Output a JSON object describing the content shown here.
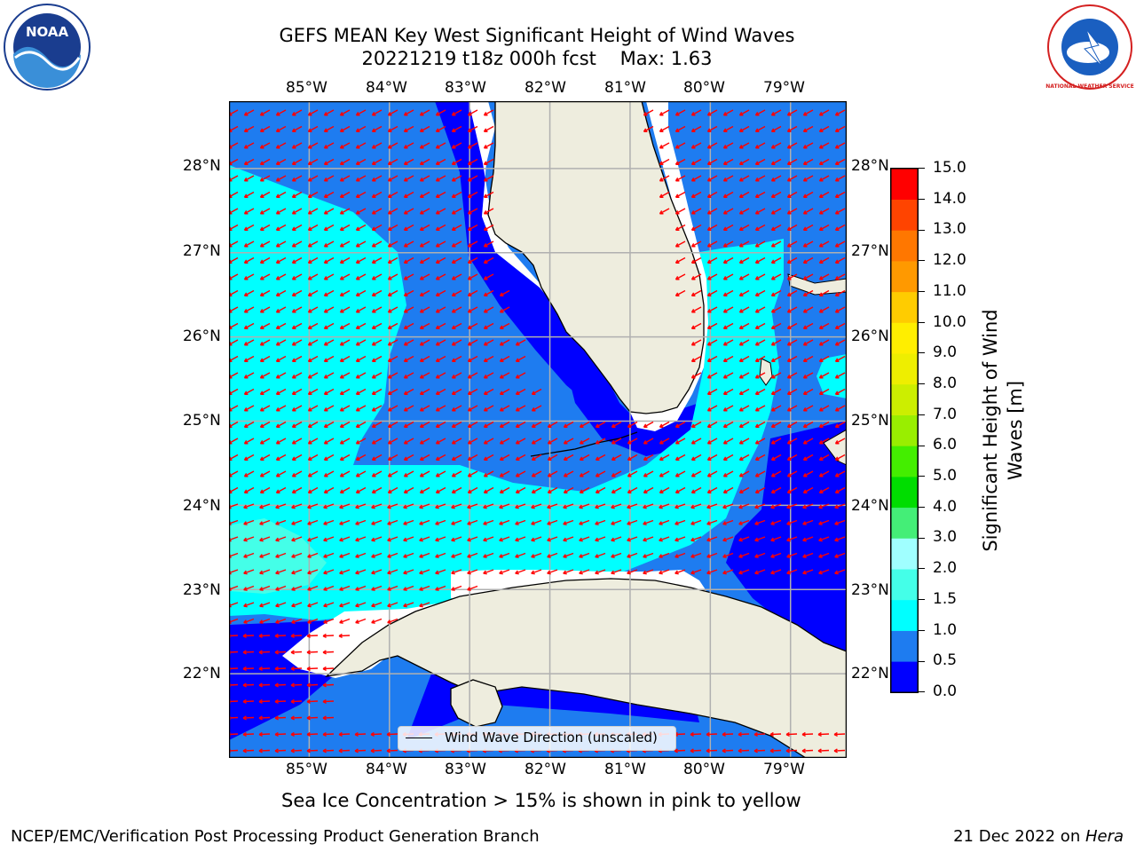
{
  "title": {
    "line1": "GEFS MEAN Key West Significant Height of Wind Waves",
    "line2": "20221219 t18z 000h fcst    Max: 1.63"
  },
  "logos": {
    "left": {
      "name": "noaa-logo",
      "text": "NOAA"
    },
    "right": {
      "name": "national-weather-service-logo",
      "text": "NATIONAL WEATHER SERVICE"
    }
  },
  "axes": {
    "lon_top": [
      "85°W",
      "84°W",
      "83°W",
      "82°W",
      "81°W",
      "80°W",
      "79°W"
    ],
    "lon_bottom": [
      "85°W",
      "84°W",
      "83°W",
      "82°W",
      "81°W",
      "80°W",
      "79°W"
    ],
    "lat_left": [
      "28°N",
      "27°N",
      "26°N",
      "25°N",
      "24°N",
      "23°N",
      "22°N"
    ],
    "lat_right": [
      "28°N",
      "27°N",
      "26°N",
      "25°N",
      "24°N",
      "23°N",
      "22°N"
    ]
  },
  "map": {
    "lon_range": [
      -86.0,
      -78.3
    ],
    "lat_range": [
      21.0,
      28.8
    ],
    "grid_lons": [
      -85,
      -84,
      -83,
      -82,
      -81,
      -80,
      -79
    ],
    "grid_lats": [
      28,
      27,
      26,
      25,
      24,
      23,
      22
    ],
    "wind_direction": "from east-northeast (arrows point west-southwest)"
  },
  "legend": {
    "label": "Wind Wave Direction (unscaled)"
  },
  "colorbar": {
    "label": "Significant Height of Wind Waves [m]",
    "ticks": [
      "0.0",
      "0.5",
      "1.0",
      "1.5",
      "2.0",
      "3.0",
      "4.0",
      "5.0",
      "6.0",
      "7.0",
      "8.0",
      "9.0",
      "10.0",
      "11.0",
      "12.0",
      "13.0",
      "14.0",
      "15.0"
    ],
    "colors": [
      "#0000ff",
      "#1e7cf0",
      "#00ffff",
      "#44ffe8",
      "#a0ffff",
      "#44ee77",
      "#00dd00",
      "#44ee00",
      "#99ee00",
      "#ccee00",
      "#eeee00",
      "#ffee00",
      "#ffcc00",
      "#ff9900",
      "#ff7700",
      "#ff4400",
      "#ff0000"
    ]
  },
  "subtitle": "Sea Ice Concentration > 15% is shown in pink to yellow",
  "footer": {
    "left": "NCEP/EMC/Verification Post Processing Product Generation Branch",
    "right_date": "21 Dec 2022 on ",
    "right_host": "Hera"
  }
}
